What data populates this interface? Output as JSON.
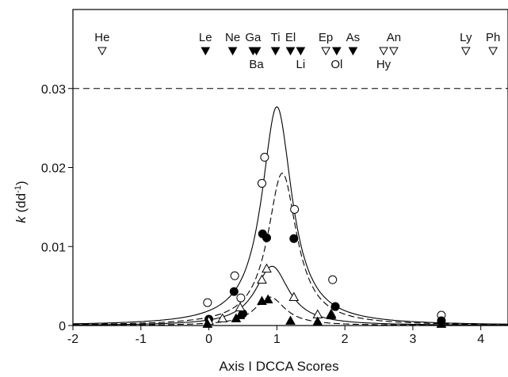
{
  "chart_data": {
    "type": "scatter",
    "title": "",
    "xlabel": "Axis I DCCA Scores",
    "ylabel_parts": {
      "main": "k",
      "unit_open": " (dd",
      "sup": "-1",
      "unit_close": ")"
    },
    "xlim": [
      -2,
      4.4
    ],
    "ylim": [
      0,
      0.04
    ],
    "x_ticks": [
      -2,
      -1,
      0,
      1,
      2,
      3,
      4
    ],
    "x_tick_labels": [
      "-2",
      "-1",
      "0",
      "1",
      "2",
      "3",
      "4"
    ],
    "y_ticks": [
      0,
      0.01,
      0.02,
      0.03
    ],
    "y_tick_labels": [
      "0",
      "0.01",
      "0.02",
      "0.03"
    ],
    "reference_line": {
      "y": 0.03,
      "style": "dashed"
    },
    "grid": false,
    "species_markers": [
      {
        "label": "He",
        "x": -1.57,
        "filled": false,
        "row": "top"
      },
      {
        "label": "Le",
        "x": -0.05,
        "filled": true,
        "row": "top"
      },
      {
        "label": "Ne",
        "x": 0.35,
        "filled": true,
        "row": "top"
      },
      {
        "label": "Ga",
        "x": 0.65,
        "filled": true,
        "row": "top"
      },
      {
        "label": "Ba",
        "x": 0.7,
        "filled": true,
        "row": "bottom"
      },
      {
        "label": "Ti",
        "x": 0.98,
        "filled": true,
        "row": "top"
      },
      {
        "label": "El",
        "x": 1.2,
        "filled": true,
        "row": "top"
      },
      {
        "label": "Li",
        "x": 1.35,
        "filled": true,
        "row": "bottom"
      },
      {
        "label": "Ep",
        "x": 1.72,
        "filled": false,
        "row": "top"
      },
      {
        "label": "Ol",
        "x": 1.88,
        "filled": true,
        "row": "bottom"
      },
      {
        "label": "As",
        "x": 2.12,
        "filled": true,
        "row": "top"
      },
      {
        "label": "Hy",
        "x": 2.57,
        "filled": false,
        "row": "bottom"
      },
      {
        "label": "An",
        "x": 2.72,
        "filled": false,
        "row": "top"
      },
      {
        "label": "Ly",
        "x": 3.78,
        "filled": false,
        "row": "top"
      },
      {
        "label": "Ph",
        "x": 4.18,
        "filled": false,
        "row": "top"
      }
    ],
    "series": [
      {
        "marker": "open-circle",
        "line": "solid",
        "points": [
          [
            -0.02,
            0.0029
          ],
          [
            0.38,
            0.0063
          ],
          [
            0.47,
            0.0035
          ],
          [
            0.78,
            0.018
          ],
          [
            0.82,
            0.0213
          ],
          [
            1.26,
            0.0147
          ],
          [
            1.82,
            0.0058
          ],
          [
            3.42,
            0.0013
          ]
        ],
        "fit": {
          "peak_x": 1.0,
          "peak_y": 0.0277,
          "width": 0.27
        }
      },
      {
        "marker": "filled-circle",
        "line": "dashed",
        "points": [
          [
            0.0,
            0.0008
          ],
          [
            0.37,
            0.0043
          ],
          [
            0.5,
            0.0015
          ],
          [
            0.79,
            0.0116
          ],
          [
            0.85,
            0.0111
          ],
          [
            1.25,
            0.011
          ],
          [
            1.86,
            0.0024
          ],
          [
            3.42,
            0.0006
          ]
        ],
        "fit": {
          "peak_x": 1.08,
          "peak_y": 0.0193,
          "width": 0.26
        }
      },
      {
        "marker": "open-triangle",
        "line": "solid",
        "points": [
          [
            0.0,
            0.0006
          ],
          [
            0.2,
            0.0009
          ],
          [
            0.46,
            0.0023
          ],
          [
            0.78,
            0.0058
          ],
          [
            0.85,
            0.0072
          ],
          [
            1.25,
            0.0036
          ],
          [
            1.6,
            0.0014
          ],
          [
            1.8,
            0.0015
          ]
        ],
        "fit": {
          "peak_x": 0.93,
          "peak_y": 0.0075,
          "width": 0.3
        }
      },
      {
        "marker": "filled-triangle",
        "line": "dashed",
        "points": [
          [
            -0.02,
            0.0002
          ],
          [
            0.4,
            0.0009
          ],
          [
            0.46,
            0.0013
          ],
          [
            0.78,
            0.0031
          ],
          [
            0.87,
            0.0033
          ],
          [
            1.2,
            0.0006
          ],
          [
            1.6,
            0.0005
          ],
          [
            1.8,
            0.0013
          ],
          [
            3.42,
            0.0002
          ]
        ],
        "fit": {
          "peak_x": 0.9,
          "peak_y": 0.0036,
          "width": 0.27
        }
      }
    ]
  }
}
